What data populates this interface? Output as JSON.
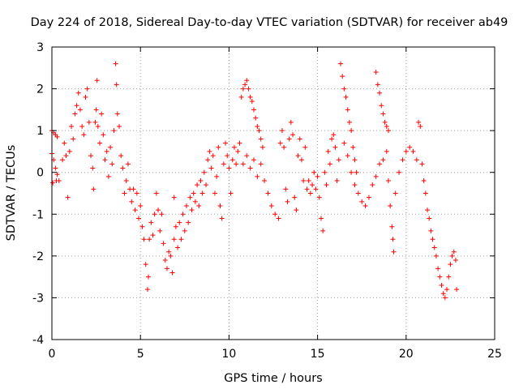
{
  "chart_data": {
    "type": "scatter",
    "title": "Day 224 of 2018, Sidereal Day-to-day VTEC variation (SDTVAR) for receiver ab49",
    "xlabel": "GPS time / hours",
    "ylabel": "SDTVAR / TECUs",
    "xlim": [
      0,
      25
    ],
    "ylim": [
      -4,
      3
    ],
    "xticks": [
      "0",
      "5",
      "10",
      "15",
      "20",
      "25"
    ],
    "yticks": [
      "-4",
      "-3",
      "-2",
      "-1",
      "0",
      "1",
      "2",
      "3"
    ],
    "grid": true,
    "marker": "plus",
    "color": "#ff0000",
    "series": [
      {
        "name": "SDTVAR",
        "points": [
          [
            0.0,
            1.0
          ],
          [
            0.1,
            0.95
          ],
          [
            0.2,
            0.9
          ],
          [
            0.3,
            0.85
          ],
          [
            0.0,
            0.45
          ],
          [
            0.1,
            0.3
          ],
          [
            0.2,
            0.1
          ],
          [
            0.3,
            -0.05
          ],
          [
            0.4,
            -0.2
          ],
          [
            0.05,
            -0.25
          ],
          [
            0.25,
            -0.2
          ],
          [
            0.6,
            0.3
          ],
          [
            0.7,
            0.7
          ],
          [
            0.8,
            0.4
          ],
          [
            0.9,
            -0.6
          ],
          [
            1.0,
            0.5
          ],
          [
            1.1,
            1.1
          ],
          [
            1.2,
            0.8
          ],
          [
            1.3,
            1.4
          ],
          [
            1.4,
            1.6
          ],
          [
            1.5,
            1.9
          ],
          [
            1.6,
            1.5
          ],
          [
            1.7,
            1.1
          ],
          [
            1.8,
            0.9
          ],
          [
            1.9,
            1.8
          ],
          [
            2.0,
            2.0
          ],
          [
            2.1,
            1.2
          ],
          [
            2.2,
            0.4
          ],
          [
            2.3,
            0.1
          ],
          [
            2.35,
            -0.4
          ],
          [
            2.45,
            1.2
          ],
          [
            2.5,
            1.5
          ],
          [
            2.55,
            2.2
          ],
          [
            2.6,
            1.1
          ],
          [
            2.7,
            0.7
          ],
          [
            2.8,
            1.4
          ],
          [
            2.9,
            0.9
          ],
          [
            3.0,
            0.3
          ],
          [
            3.1,
            0.5
          ],
          [
            3.2,
            -0.1
          ],
          [
            3.3,
            0.6
          ],
          [
            3.4,
            0.2
          ],
          [
            3.5,
            1.0
          ],
          [
            3.6,
            2.6
          ],
          [
            3.65,
            2.1
          ],
          [
            3.7,
            1.4
          ],
          [
            3.8,
            1.1
          ],
          [
            3.9,
            0.4
          ],
          [
            4.0,
            0.1
          ],
          [
            4.1,
            -0.5
          ],
          [
            4.2,
            -0.2
          ],
          [
            4.3,
            0.2
          ],
          [
            4.4,
            -0.4
          ],
          [
            4.5,
            -0.7
          ],
          [
            4.6,
            -0.4
          ],
          [
            4.7,
            -0.9
          ],
          [
            4.8,
            -0.5
          ],
          [
            4.9,
            -1.1
          ],
          [
            5.0,
            -0.8
          ],
          [
            5.1,
            -1.3
          ],
          [
            5.2,
            -1.6
          ],
          [
            5.3,
            -2.2
          ],
          [
            5.4,
            -2.8
          ],
          [
            5.45,
            -2.5
          ],
          [
            5.5,
            -1.6
          ],
          [
            5.6,
            -1.2
          ],
          [
            5.7,
            -1.5
          ],
          [
            5.8,
            -1.0
          ],
          [
            5.9,
            -0.5
          ],
          [
            6.0,
            -0.9
          ],
          [
            6.1,
            -1.4
          ],
          [
            6.2,
            -1.0
          ],
          [
            6.3,
            -1.7
          ],
          [
            6.4,
            -2.1
          ],
          [
            6.5,
            -2.3
          ],
          [
            6.6,
            -1.9
          ],
          [
            6.7,
            -2.0
          ],
          [
            6.8,
            -2.4
          ],
          [
            6.9,
            -1.6
          ],
          [
            7.0,
            -1.3
          ],
          [
            6.9,
            -0.6
          ],
          [
            7.1,
            -1.8
          ],
          [
            7.2,
            -1.2
          ],
          [
            7.3,
            -1.6
          ],
          [
            7.4,
            -1.0
          ],
          [
            7.5,
            -1.4
          ],
          [
            7.6,
            -0.8
          ],
          [
            7.7,
            -1.2
          ],
          [
            7.8,
            -0.6
          ],
          [
            7.9,
            -0.9
          ],
          [
            8.0,
            -0.5
          ],
          [
            8.1,
            -0.7
          ],
          [
            8.2,
            -0.3
          ],
          [
            8.3,
            -0.8
          ],
          [
            8.4,
            -0.2
          ],
          [
            8.5,
            -0.5
          ],
          [
            8.6,
            0.0
          ],
          [
            8.7,
            -0.3
          ],
          [
            8.8,
            0.3
          ],
          [
            8.9,
            0.5
          ],
          [
            9.0,
            0.1
          ],
          [
            9.1,
            0.4
          ],
          [
            9.2,
            -0.5
          ],
          [
            9.3,
            -0.1
          ],
          [
            9.4,
            0.6
          ],
          [
            9.5,
            -0.8
          ],
          [
            9.6,
            -1.1
          ],
          [
            9.7,
            0.2
          ],
          [
            9.8,
            0.7
          ],
          [
            9.9,
            0.4
          ],
          [
            10.0,
            0.1
          ],
          [
            10.1,
            -0.5
          ],
          [
            10.2,
            0.3
          ],
          [
            10.3,
            0.6
          ],
          [
            10.4,
            0.2
          ],
          [
            10.5,
            0.5
          ],
          [
            10.6,
            0.7
          ],
          [
            10.7,
            1.8
          ],
          [
            10.8,
            2.0
          ],
          [
            10.9,
            2.1
          ],
          [
            11.0,
            2.2
          ],
          [
            11.1,
            2.0
          ],
          [
            11.2,
            1.8
          ],
          [
            11.3,
            1.7
          ],
          [
            11.4,
            1.5
          ],
          [
            11.5,
            1.3
          ],
          [
            11.6,
            1.1
          ],
          [
            11.7,
            1.0
          ],
          [
            11.8,
            0.8
          ],
          [
            11.9,
            0.6
          ],
          [
            10.8,
            0.2
          ],
          [
            11.0,
            0.4
          ],
          [
            11.2,
            0.1
          ],
          [
            11.4,
            0.3
          ],
          [
            11.6,
            -0.1
          ],
          [
            11.8,
            0.2
          ],
          [
            12.0,
            -0.2
          ],
          [
            12.2,
            -0.5
          ],
          [
            12.4,
            -0.8
          ],
          [
            12.6,
            -1.0
          ],
          [
            12.8,
            -1.1
          ],
          [
            12.9,
            0.7
          ],
          [
            13.0,
            1.0
          ],
          [
            13.1,
            0.6
          ],
          [
            13.2,
            -0.4
          ],
          [
            13.3,
            -0.7
          ],
          [
            13.4,
            0.8
          ],
          [
            13.5,
            1.2
          ],
          [
            13.6,
            0.9
          ],
          [
            13.7,
            -0.6
          ],
          [
            13.8,
            -0.9
          ],
          [
            13.9,
            0.4
          ],
          [
            14.0,
            0.8
          ],
          [
            14.1,
            0.3
          ],
          [
            14.2,
            -0.2
          ],
          [
            14.3,
            0.6
          ],
          [
            14.4,
            -0.4
          ],
          [
            14.5,
            -0.2
          ],
          [
            14.6,
            -0.5
          ],
          [
            14.7,
            -0.3
          ],
          [
            14.8,
            0.0
          ],
          [
            14.9,
            -0.4
          ],
          [
            15.0,
            -0.1
          ],
          [
            15.1,
            -0.6
          ],
          [
            15.2,
            -1.1
          ],
          [
            15.3,
            -1.4
          ],
          [
            15.4,
            0.0
          ],
          [
            15.5,
            -0.3
          ],
          [
            15.6,
            0.5
          ],
          [
            15.7,
            0.2
          ],
          [
            15.8,
            0.8
          ],
          [
            15.9,
            0.9
          ],
          [
            16.0,
            0.6
          ],
          [
            16.1,
            -0.2
          ],
          [
            16.2,
            0.3
          ],
          [
            16.3,
            2.6
          ],
          [
            16.4,
            2.3
          ],
          [
            16.5,
            2.0
          ],
          [
            16.6,
            1.8
          ],
          [
            16.7,
            1.5
          ],
          [
            16.8,
            1.2
          ],
          [
            16.9,
            1.0
          ],
          [
            17.0,
            0.6
          ],
          [
            17.1,
            0.3
          ],
          [
            17.2,
            0.0
          ],
          [
            16.5,
            0.7
          ],
          [
            16.7,
            0.4
          ],
          [
            16.9,
            0.0
          ],
          [
            17.1,
            -0.3
          ],
          [
            17.3,
            -0.5
          ],
          [
            17.5,
            -0.7
          ],
          [
            17.7,
            -0.8
          ],
          [
            17.9,
            -0.6
          ],
          [
            18.1,
            -0.3
          ],
          [
            18.3,
            -0.1
          ],
          [
            18.5,
            0.2
          ],
          [
            18.7,
            0.3
          ],
          [
            18.9,
            0.5
          ],
          [
            19.0,
            -0.2
          ],
          [
            19.1,
            -0.8
          ],
          [
            19.2,
            -1.3
          ],
          [
            19.3,
            -1.9
          ],
          [
            19.25,
            -1.6
          ],
          [
            18.3,
            2.4
          ],
          [
            18.4,
            2.1
          ],
          [
            18.5,
            1.9
          ],
          [
            18.6,
            1.6
          ],
          [
            18.7,
            1.4
          ],
          [
            18.8,
            1.2
          ],
          [
            18.9,
            1.1
          ],
          [
            19.0,
            1.0
          ],
          [
            19.4,
            -0.5
          ],
          [
            19.6,
            0.0
          ],
          [
            19.8,
            0.3
          ],
          [
            20.0,
            0.5
          ],
          [
            20.2,
            0.6
          ],
          [
            20.4,
            0.5
          ],
          [
            20.6,
            0.3
          ],
          [
            20.7,
            1.2
          ],
          [
            20.8,
            1.1
          ],
          [
            20.9,
            0.2
          ],
          [
            21.0,
            -0.2
          ],
          [
            21.1,
            -0.5
          ],
          [
            21.2,
            -0.9
          ],
          [
            21.3,
            -1.1
          ],
          [
            21.4,
            -1.4
          ],
          [
            21.5,
            -1.6
          ],
          [
            21.6,
            -1.8
          ],
          [
            21.7,
            -2.0
          ],
          [
            21.8,
            -2.3
          ],
          [
            21.9,
            -2.5
          ],
          [
            22.0,
            -2.7
          ],
          [
            22.1,
            -2.9
          ],
          [
            22.2,
            -3.0
          ],
          [
            22.3,
            -2.8
          ],
          [
            22.4,
            -2.5
          ],
          [
            22.5,
            -2.2
          ],
          [
            22.6,
            -2.0
          ],
          [
            22.7,
            -1.9
          ],
          [
            22.8,
            -2.1
          ],
          [
            22.85,
            -2.8
          ]
        ]
      }
    ]
  }
}
